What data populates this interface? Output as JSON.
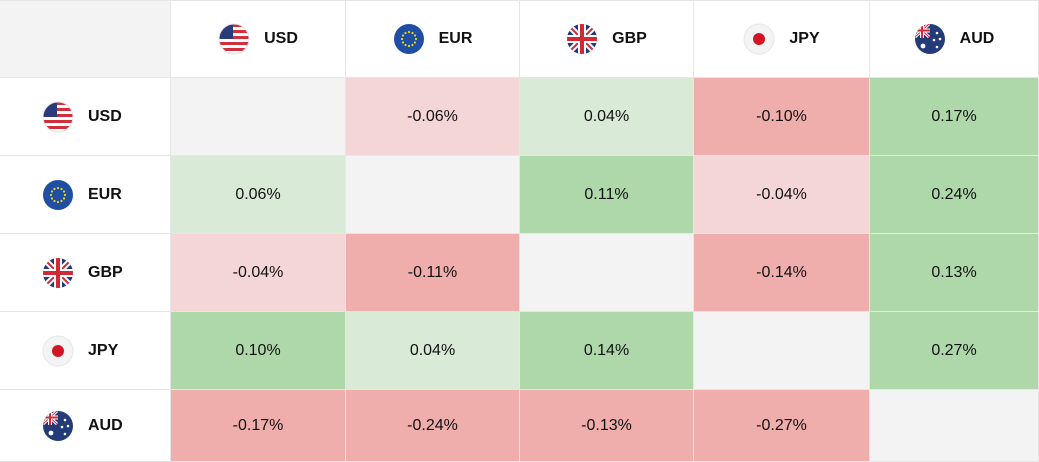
{
  "currencies": [
    {
      "code": "USD",
      "flag": "us-flag"
    },
    {
      "code": "EUR",
      "flag": "eu-flag"
    },
    {
      "code": "GBP",
      "flag": "gb-flag"
    },
    {
      "code": "JPY",
      "flag": "jp-flag"
    },
    {
      "code": "AUD",
      "flag": "au-flag"
    }
  ],
  "matrix": [
    [
      "",
      "-0.06%",
      "0.04%",
      "-0.10%",
      "0.17%"
    ],
    [
      "0.06%",
      "",
      "0.11%",
      "-0.04%",
      "0.24%"
    ],
    [
      "-0.04%",
      "-0.11%",
      "",
      "-0.14%",
      "0.13%"
    ],
    [
      "0.10%",
      "0.04%",
      "0.14%",
      "",
      "0.27%"
    ],
    [
      "-0.17%",
      "-0.24%",
      "-0.13%",
      "-0.27%",
      ""
    ]
  ],
  "colors": {
    "strong_green": "#aed8aa",
    "light_green": "#d9ebd6",
    "strong_red": "#efaeab",
    "light_red": "#f5d6d6",
    "empty": "#f3f3f3"
  }
}
